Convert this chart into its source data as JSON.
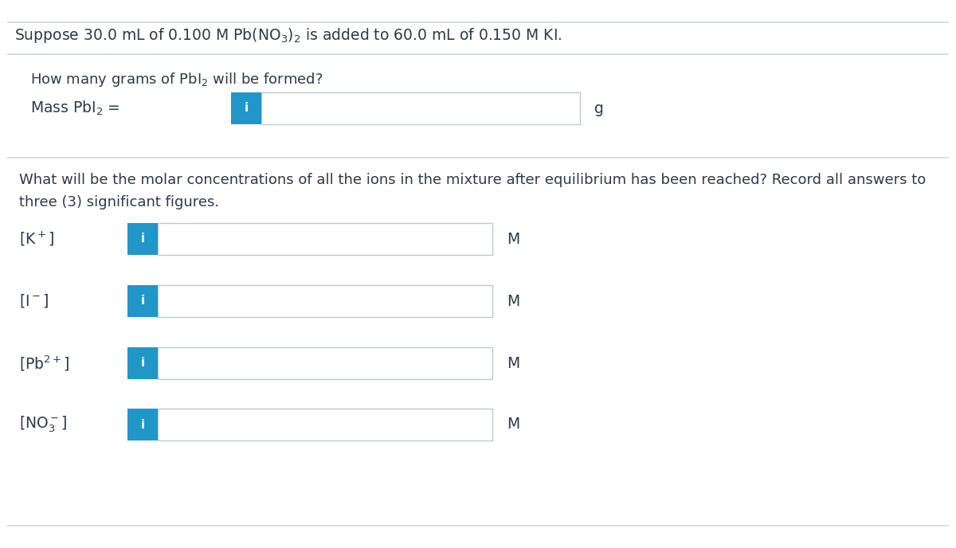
{
  "title_text": "Suppose 30.0 mL of 0.100 M Pb(NO$_3$)$_2$ is added to 60.0 mL of 0.150 M KI.",
  "section1_question": "How many grams of PbI$_2$ will be formed?",
  "section1_label": "Mass PbI$_2$ =",
  "section1_unit": "g",
  "section2_question_line1": "What will be the molar concentrations of all the ions in the mixture after equilibrium has been reached? Record all answers to",
  "section2_question_line2": "three (3) significant figures.",
  "rows": [
    {
      "label": "[K$^+$]",
      "unit": "M"
    },
    {
      "label": "[I$^-$]",
      "unit": "M"
    },
    {
      "label": "[Pb$^{2+}$]",
      "unit": "M"
    },
    {
      "label": "[NO$_3^-$]",
      "unit": "M"
    }
  ],
  "bg_color": "#ffffff",
  "text_color": "#2d3a4a",
  "box_border_color": "#c0c8d0",
  "blue_btn_color": "#2196c9",
  "blue_btn_text": "i",
  "blue_btn_text_color": "#ffffff",
  "divider_color": "#d0d5da",
  "input_bg": "#ffffff",
  "label_color": "#2d3a4a",
  "title_fontsize": 13.5,
  "body_fontsize": 13.0,
  "label_fontsize": 13.5,
  "unit_fontsize": 13.5,
  "section1_label_fontsize": 13.5,
  "row_label_color": "#2d3a4a"
}
